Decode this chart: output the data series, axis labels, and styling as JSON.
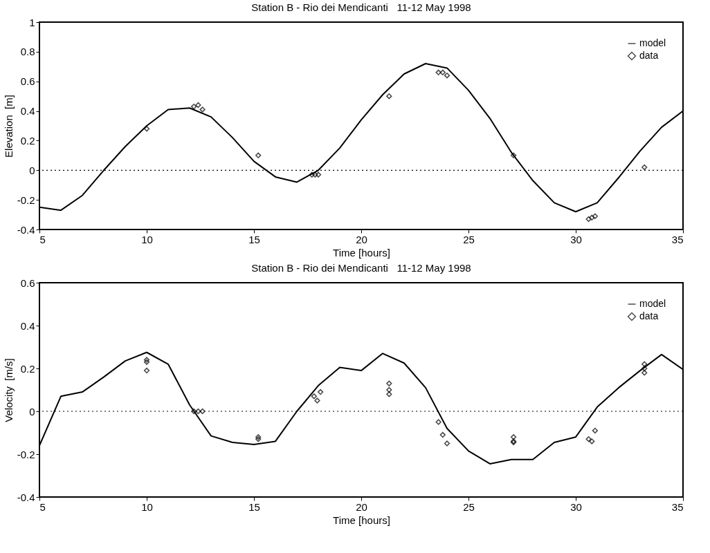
{
  "chart_data": [
    {
      "type": "line",
      "title": "Station B - Rio dei Mendicanti   11-12 May 1998",
      "xlabel": "Time [hours]",
      "ylabel": "Elevation  [m]",
      "xlim": [
        5,
        35
      ],
      "xticks": [
        5,
        10,
        15,
        20,
        25,
        30,
        35
      ],
      "ylim": [
        -0.4,
        1
      ],
      "yticks": [
        -0.4,
        -0.2,
        0,
        0.2,
        0.4,
        0.6,
        0.8,
        1
      ],
      "legend": "top right",
      "ref_lines": [
        {
          "axis": "y",
          "value": 0,
          "line_style": "dotted",
          "color": "#000000"
        }
      ],
      "series": [
        {
          "name": "model",
          "color": "#000000",
          "line_style": "solid",
          "x": [
            5,
            6,
            7,
            8,
            9,
            10,
            11,
            12,
            13,
            14,
            15,
            16,
            17,
            18,
            19,
            20,
            21,
            22,
            23,
            24,
            25,
            26,
            27,
            28,
            29,
            30,
            31,
            32,
            33,
            34,
            35
          ],
          "values": [
            -0.25,
            -0.27,
            -0.17,
            0.0,
            0.16,
            0.3,
            0.41,
            0.42,
            0.36,
            0.22,
            0.06,
            -0.045,
            -0.08,
            0.0,
            0.15,
            0.34,
            0.51,
            0.65,
            0.72,
            0.69,
            0.54,
            0.35,
            0.12,
            -0.07,
            -0.22,
            -0.28,
            -0.22,
            -0.05,
            0.13,
            0.29,
            0.4
          ]
        },
        {
          "name": "data",
          "type": "scatter",
          "color": "#000000",
          "marker": "diamond",
          "x": [
            10,
            12.2,
            12.4,
            12.6,
            15.2,
            17.7,
            17.85,
            18.0,
            21.3,
            23.6,
            23.8,
            24.0,
            27.1,
            30.6,
            30.75,
            30.9,
            33.2
          ],
          "values": [
            0.28,
            0.43,
            0.44,
            0.41,
            0.1,
            -0.03,
            -0.03,
            -0.03,
            0.5,
            0.66,
            0.66,
            0.64,
            0.1,
            -0.33,
            -0.32,
            -0.31,
            0.02
          ]
        }
      ]
    },
    {
      "type": "line",
      "title": "Station B - Rio dei Mendicanti   11-12 May 1998",
      "xlabel": "Time [hours]",
      "ylabel": "Velocity  [m/s]",
      "xlim": [
        5,
        35
      ],
      "xticks": [
        5,
        10,
        15,
        20,
        25,
        30,
        35
      ],
      "ylim": [
        -0.4,
        0.6
      ],
      "yticks": [
        -0.4,
        -0.2,
        0,
        0.2,
        0.4,
        0.6
      ],
      "legend": "top right",
      "ref_lines": [
        {
          "axis": "y",
          "value": 0,
          "line_style": "dotted",
          "color": "#000000"
        }
      ],
      "series": [
        {
          "name": "model",
          "color": "#000000",
          "line_style": "solid",
          "x": [
            5,
            6,
            7,
            8,
            9,
            10,
            11,
            12,
            13,
            14,
            15,
            16,
            17,
            18,
            19,
            20,
            21,
            22,
            23,
            24,
            25,
            26,
            27,
            28,
            29,
            30,
            31,
            32,
            33,
            34,
            35
          ],
          "values": [
            -0.16,
            0.07,
            0.09,
            0.16,
            0.235,
            0.275,
            0.22,
            0.03,
            -0.115,
            -0.145,
            -0.155,
            -0.14,
            0.0,
            0.12,
            0.205,
            0.19,
            0.27,
            0.225,
            0.11,
            -0.08,
            -0.185,
            -0.245,
            -0.225,
            -0.225,
            -0.145,
            -0.12,
            0.02,
            0.11,
            0.19,
            0.265,
            0.195
          ]
        },
        {
          "name": "data",
          "type": "scatter",
          "color": "#000000",
          "marker": "diamond",
          "x": [
            10,
            10,
            10,
            12.2,
            12.4,
            12.6,
            15.2,
            15.2,
            17.8,
            17.95,
            18.1,
            21.3,
            21.3,
            21.3,
            23.6,
            23.8,
            24.0,
            27.1,
            27.1,
            27.1,
            30.6,
            30.75,
            30.9,
            33.2,
            33.2,
            33.2
          ],
          "values": [
            0.24,
            0.23,
            0.19,
            0.0,
            0.0,
            0.0,
            -0.12,
            -0.13,
            0.07,
            0.05,
            0.09,
            0.13,
            0.1,
            0.08,
            -0.05,
            -0.11,
            -0.15,
            -0.12,
            -0.14,
            -0.145,
            -0.13,
            -0.14,
            -0.09,
            0.22,
            0.2,
            0.18
          ]
        }
      ]
    }
  ]
}
